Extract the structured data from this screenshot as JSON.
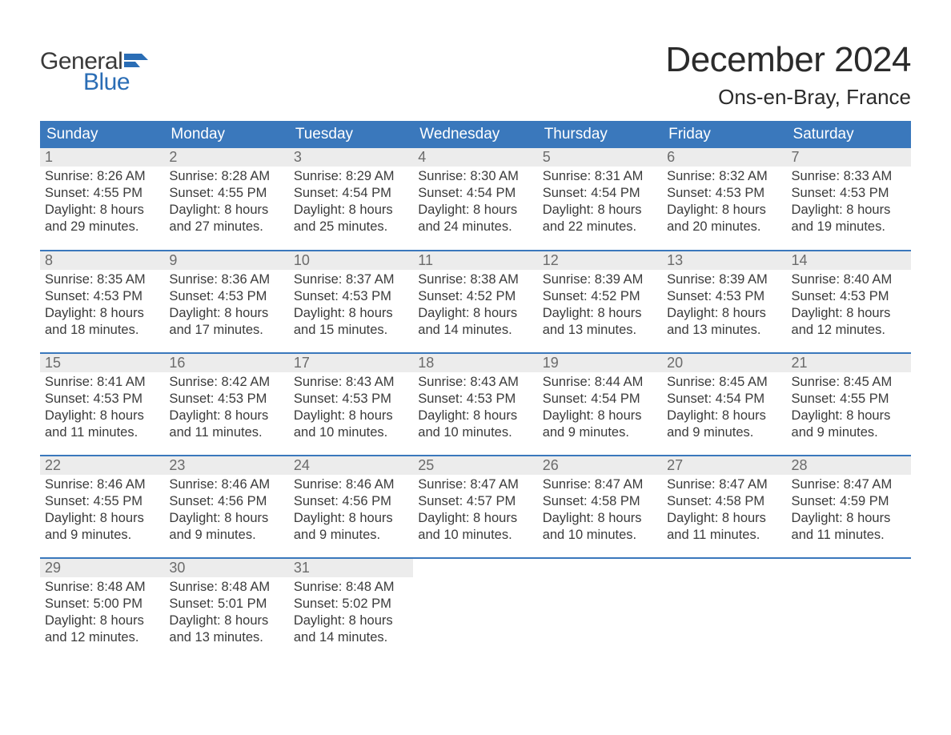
{
  "logo": {
    "word1": "General",
    "word2": "Blue",
    "word1_color": "#3a3a3a",
    "word2_color": "#2a6db5",
    "flag_color": "#2a6db5"
  },
  "header": {
    "title": "December 2024",
    "location": "Ons-en-Bray, France"
  },
  "styling": {
    "header_bg": "#3a78bc",
    "header_text": "#ffffff",
    "daynum_bg": "#ececec",
    "daynum_color": "#6b6b6b",
    "body_text": "#3b3b3b",
    "week_separator": "#3a78bc",
    "page_bg": "#ffffff",
    "title_fontsize": 44,
    "location_fontsize": 26,
    "th_fontsize": 19,
    "cell_fontsize": 16.5
  },
  "columns": [
    "Sunday",
    "Monday",
    "Tuesday",
    "Wednesday",
    "Thursday",
    "Friday",
    "Saturday"
  ],
  "weeks": [
    [
      {
        "n": "1",
        "sr": "Sunrise: 8:26 AM",
        "ss": "Sunset: 4:55 PM",
        "d1": "Daylight: 8 hours",
        "d2": "and 29 minutes."
      },
      {
        "n": "2",
        "sr": "Sunrise: 8:28 AM",
        "ss": "Sunset: 4:55 PM",
        "d1": "Daylight: 8 hours",
        "d2": "and 27 minutes."
      },
      {
        "n": "3",
        "sr": "Sunrise: 8:29 AM",
        "ss": "Sunset: 4:54 PM",
        "d1": "Daylight: 8 hours",
        "d2": "and 25 minutes."
      },
      {
        "n": "4",
        "sr": "Sunrise: 8:30 AM",
        "ss": "Sunset: 4:54 PM",
        "d1": "Daylight: 8 hours",
        "d2": "and 24 minutes."
      },
      {
        "n": "5",
        "sr": "Sunrise: 8:31 AM",
        "ss": "Sunset: 4:54 PM",
        "d1": "Daylight: 8 hours",
        "d2": "and 22 minutes."
      },
      {
        "n": "6",
        "sr": "Sunrise: 8:32 AM",
        "ss": "Sunset: 4:53 PM",
        "d1": "Daylight: 8 hours",
        "d2": "and 20 minutes."
      },
      {
        "n": "7",
        "sr": "Sunrise: 8:33 AM",
        "ss": "Sunset: 4:53 PM",
        "d1": "Daylight: 8 hours",
        "d2": "and 19 minutes."
      }
    ],
    [
      {
        "n": "8",
        "sr": "Sunrise: 8:35 AM",
        "ss": "Sunset: 4:53 PM",
        "d1": "Daylight: 8 hours",
        "d2": "and 18 minutes."
      },
      {
        "n": "9",
        "sr": "Sunrise: 8:36 AM",
        "ss": "Sunset: 4:53 PM",
        "d1": "Daylight: 8 hours",
        "d2": "and 17 minutes."
      },
      {
        "n": "10",
        "sr": "Sunrise: 8:37 AM",
        "ss": "Sunset: 4:53 PM",
        "d1": "Daylight: 8 hours",
        "d2": "and 15 minutes."
      },
      {
        "n": "11",
        "sr": "Sunrise: 8:38 AM",
        "ss": "Sunset: 4:52 PM",
        "d1": "Daylight: 8 hours",
        "d2": "and 14 minutes."
      },
      {
        "n": "12",
        "sr": "Sunrise: 8:39 AM",
        "ss": "Sunset: 4:52 PM",
        "d1": "Daylight: 8 hours",
        "d2": "and 13 minutes."
      },
      {
        "n": "13",
        "sr": "Sunrise: 8:39 AM",
        "ss": "Sunset: 4:53 PM",
        "d1": "Daylight: 8 hours",
        "d2": "and 13 minutes."
      },
      {
        "n": "14",
        "sr": "Sunrise: 8:40 AM",
        "ss": "Sunset: 4:53 PM",
        "d1": "Daylight: 8 hours",
        "d2": "and 12 minutes."
      }
    ],
    [
      {
        "n": "15",
        "sr": "Sunrise: 8:41 AM",
        "ss": "Sunset: 4:53 PM",
        "d1": "Daylight: 8 hours",
        "d2": "and 11 minutes."
      },
      {
        "n": "16",
        "sr": "Sunrise: 8:42 AM",
        "ss": "Sunset: 4:53 PM",
        "d1": "Daylight: 8 hours",
        "d2": "and 11 minutes."
      },
      {
        "n": "17",
        "sr": "Sunrise: 8:43 AM",
        "ss": "Sunset: 4:53 PM",
        "d1": "Daylight: 8 hours",
        "d2": "and 10 minutes."
      },
      {
        "n": "18",
        "sr": "Sunrise: 8:43 AM",
        "ss": "Sunset: 4:53 PM",
        "d1": "Daylight: 8 hours",
        "d2": "and 10 minutes."
      },
      {
        "n": "19",
        "sr": "Sunrise: 8:44 AM",
        "ss": "Sunset: 4:54 PM",
        "d1": "Daylight: 8 hours",
        "d2": "and 9 minutes."
      },
      {
        "n": "20",
        "sr": "Sunrise: 8:45 AM",
        "ss": "Sunset: 4:54 PM",
        "d1": "Daylight: 8 hours",
        "d2": "and 9 minutes."
      },
      {
        "n": "21",
        "sr": "Sunrise: 8:45 AM",
        "ss": "Sunset: 4:55 PM",
        "d1": "Daylight: 8 hours",
        "d2": "and 9 minutes."
      }
    ],
    [
      {
        "n": "22",
        "sr": "Sunrise: 8:46 AM",
        "ss": "Sunset: 4:55 PM",
        "d1": "Daylight: 8 hours",
        "d2": "and 9 minutes."
      },
      {
        "n": "23",
        "sr": "Sunrise: 8:46 AM",
        "ss": "Sunset: 4:56 PM",
        "d1": "Daylight: 8 hours",
        "d2": "and 9 minutes."
      },
      {
        "n": "24",
        "sr": "Sunrise: 8:46 AM",
        "ss": "Sunset: 4:56 PM",
        "d1": "Daylight: 8 hours",
        "d2": "and 9 minutes."
      },
      {
        "n": "25",
        "sr": "Sunrise: 8:47 AM",
        "ss": "Sunset: 4:57 PM",
        "d1": "Daylight: 8 hours",
        "d2": "and 10 minutes."
      },
      {
        "n": "26",
        "sr": "Sunrise: 8:47 AM",
        "ss": "Sunset: 4:58 PM",
        "d1": "Daylight: 8 hours",
        "d2": "and 10 minutes."
      },
      {
        "n": "27",
        "sr": "Sunrise: 8:47 AM",
        "ss": "Sunset: 4:58 PM",
        "d1": "Daylight: 8 hours",
        "d2": "and 11 minutes."
      },
      {
        "n": "28",
        "sr": "Sunrise: 8:47 AM",
        "ss": "Sunset: 4:59 PM",
        "d1": "Daylight: 8 hours",
        "d2": "and 11 minutes."
      }
    ],
    [
      {
        "n": "29",
        "sr": "Sunrise: 8:48 AM",
        "ss": "Sunset: 5:00 PM",
        "d1": "Daylight: 8 hours",
        "d2": "and 12 minutes."
      },
      {
        "n": "30",
        "sr": "Sunrise: 8:48 AM",
        "ss": "Sunset: 5:01 PM",
        "d1": "Daylight: 8 hours",
        "d2": "and 13 minutes."
      },
      {
        "n": "31",
        "sr": "Sunrise: 8:48 AM",
        "ss": "Sunset: 5:02 PM",
        "d1": "Daylight: 8 hours",
        "d2": "and 14 minutes."
      },
      null,
      null,
      null,
      null
    ]
  ]
}
